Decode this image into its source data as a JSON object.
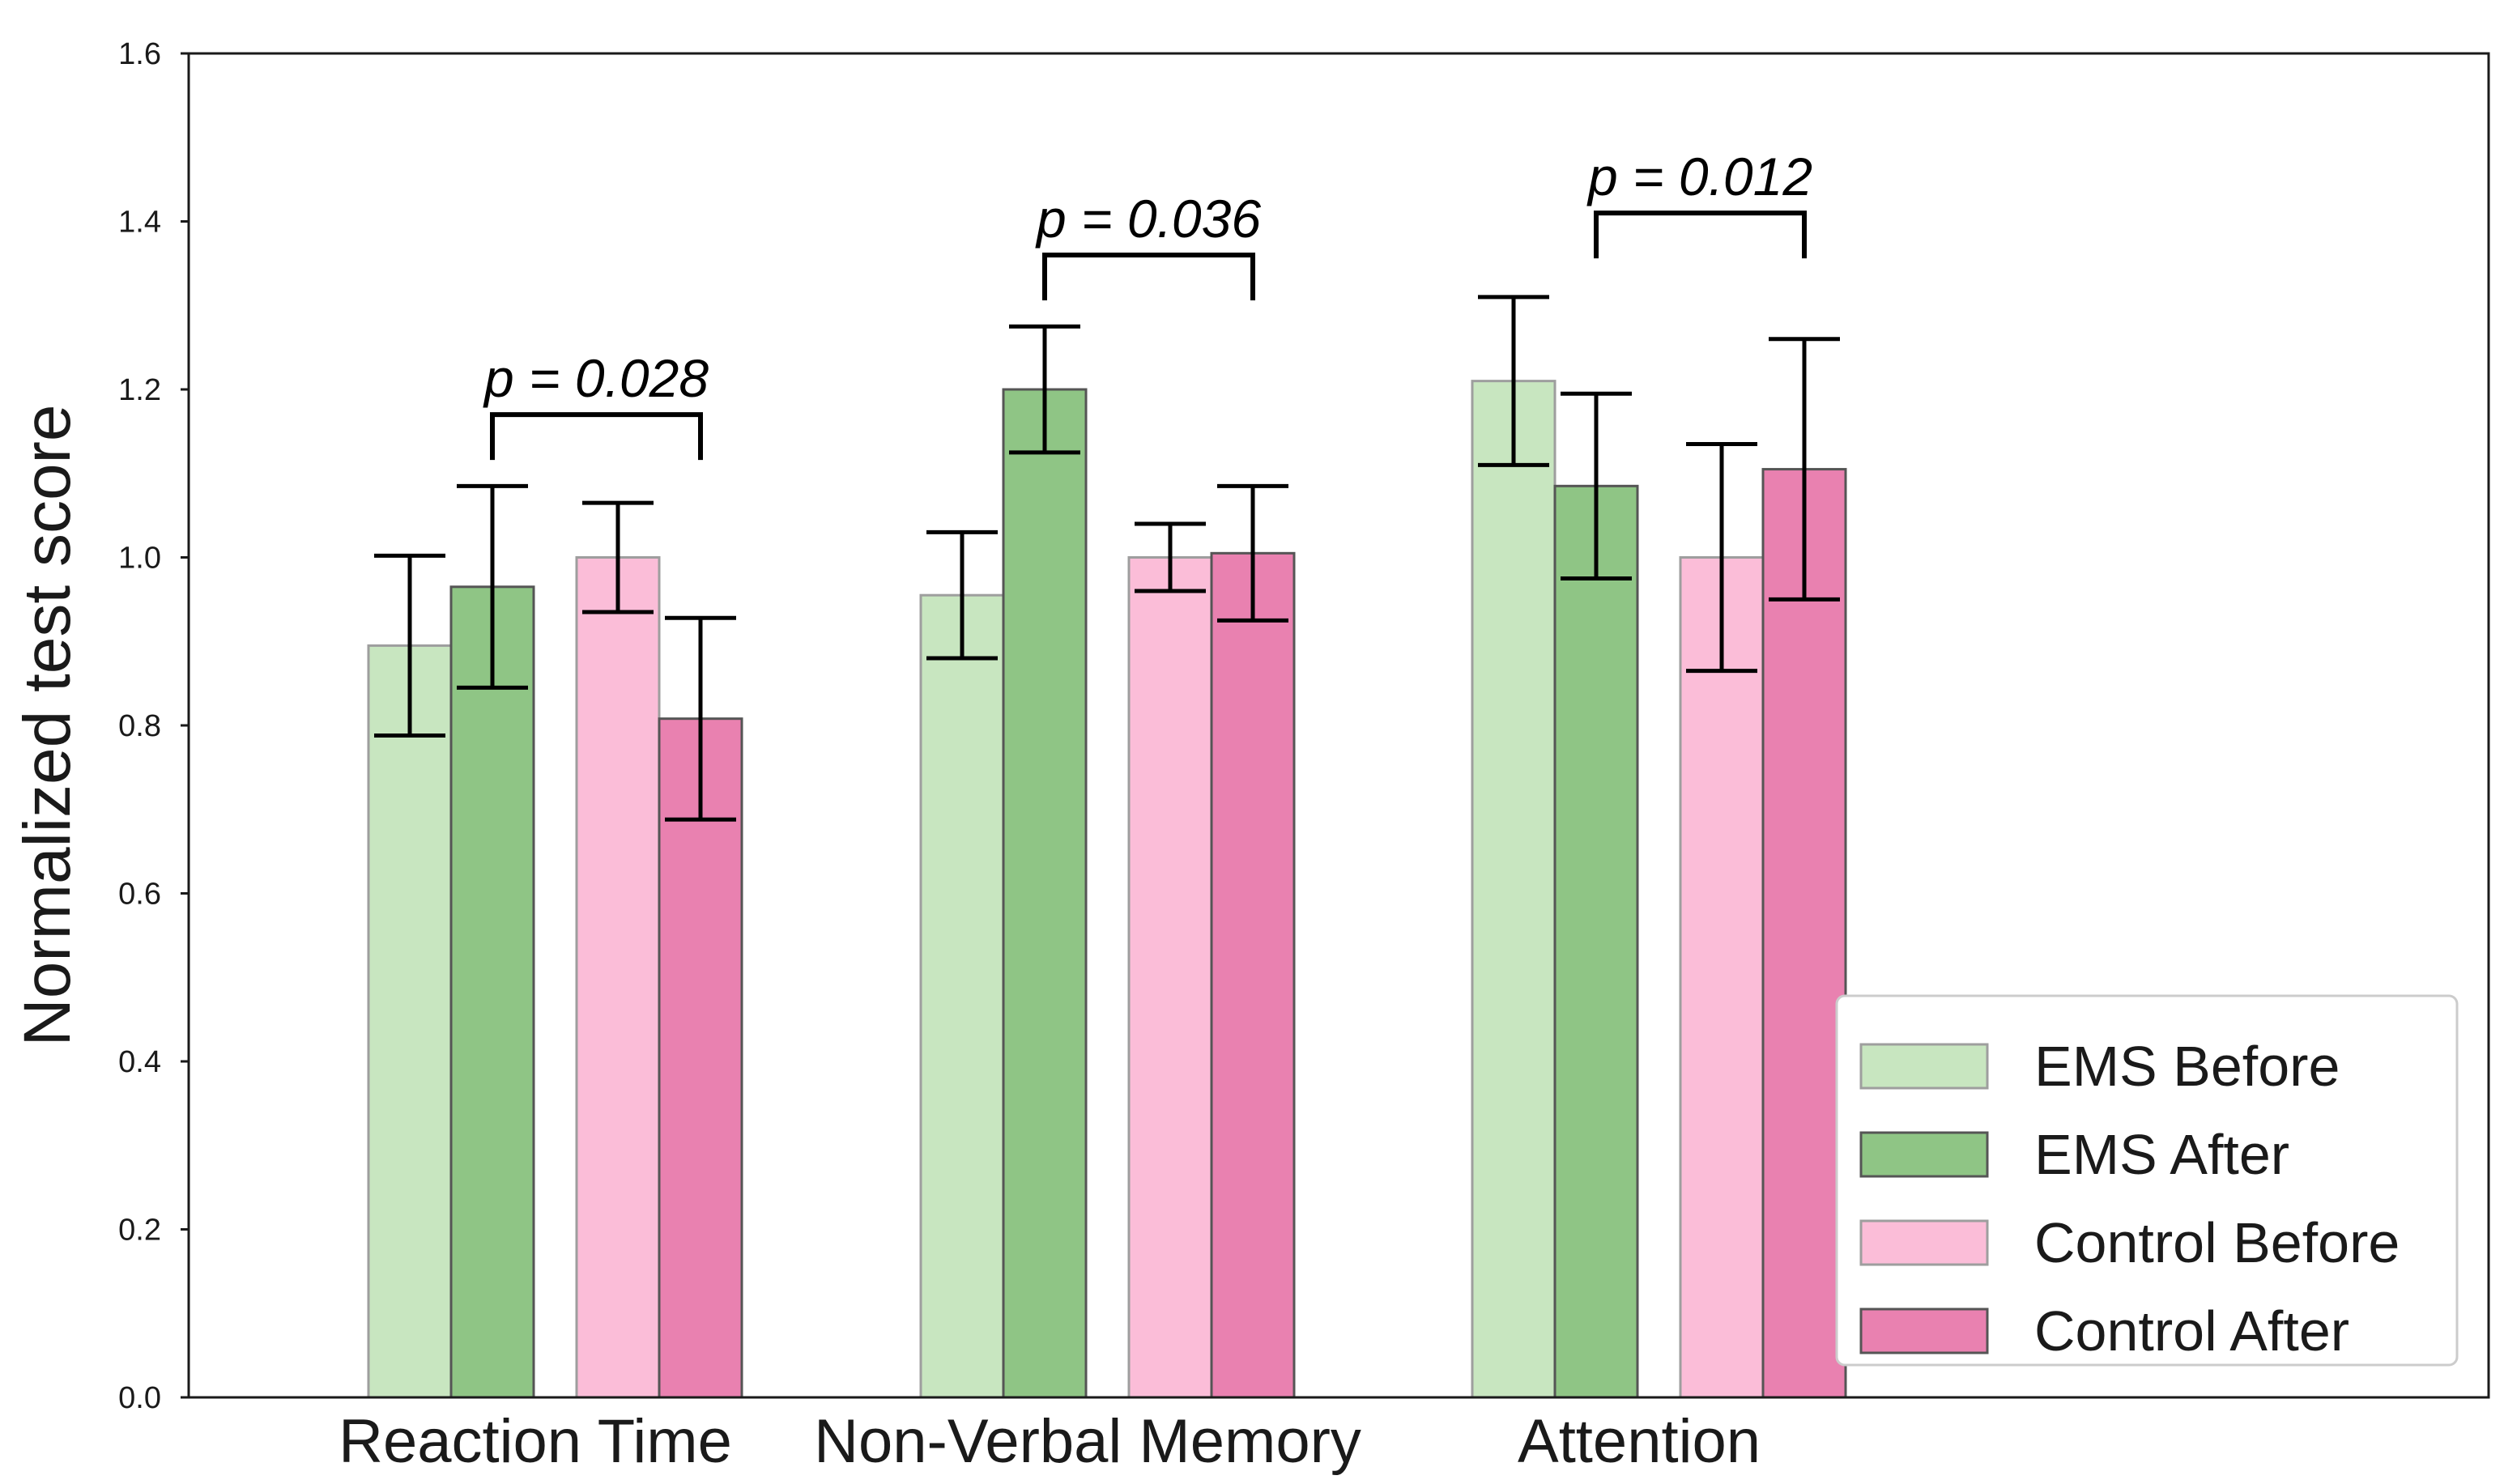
{
  "chart_data": {
    "type": "bar",
    "title": "",
    "xlabel": "",
    "ylabel": "Normalized test score",
    "ylim": [
      0.0,
      1.6
    ],
    "yticks": [
      "0.0",
      "0.2",
      "0.4",
      "0.6",
      "0.8",
      "1.0",
      "1.2",
      "1.4",
      "1.6"
    ],
    "grid": false,
    "legend_position": "bottom-right",
    "categories": [
      "Reaction Time",
      "Non-Verbal Memory",
      "Attention"
    ],
    "series": [
      {
        "name": "EMS Before",
        "color": "#c8e6c0",
        "values": [
          0.895,
          0.955,
          1.21
        ],
        "errors": [
          0.107,
          0.075,
          0.1
        ]
      },
      {
        "name": "EMS After",
        "color": "#8fc585",
        "values": [
          0.965,
          1.2,
          1.085
        ],
        "errors": [
          0.12,
          0.075,
          0.11
        ]
      },
      {
        "name": "Control Before",
        "color": "#fbbdd8",
        "values": [
          1.0,
          1.0,
          1.0
        ],
        "errors": [
          0.065,
          0.04,
          0.135
        ]
      },
      {
        "name": "Control After",
        "color": "#e981b0",
        "values": [
          0.808,
          1.005,
          1.105
        ],
        "errors": [
          0.12,
          0.08,
          0.155
        ]
      }
    ],
    "annotations": [
      {
        "category": "Reaction Time",
        "text": "p = 0.028",
        "from_series": 1,
        "to_series": 3,
        "y": 1.17
      },
      {
        "category": "Non-Verbal Memory",
        "text": "p = 0.036",
        "from_series": 1,
        "to_series": 3,
        "y": 1.36
      },
      {
        "category": "Attention",
        "text": "p = 0.012",
        "from_series": 1,
        "to_series": 3,
        "y": 1.41
      }
    ]
  }
}
